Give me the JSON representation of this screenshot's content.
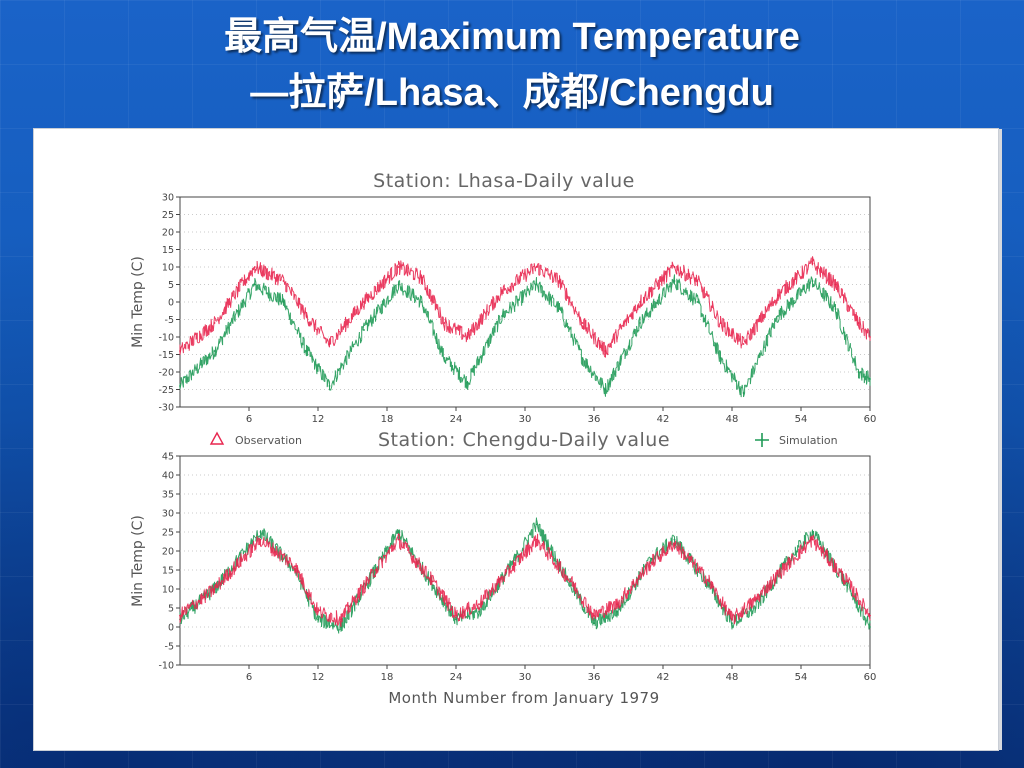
{
  "slide": {
    "title_line1": "最高气温/Maximum Temperature",
    "title_line2": "—拉萨/Lhasa、成都/Chengdu",
    "background_color": "#1557b8"
  },
  "legend": {
    "observation_label": "Observation",
    "observation_symbol": "△",
    "simulation_label": "Simulation",
    "simulation_symbol": "+",
    "observation_color": "#e8264f",
    "simulation_color": "#1f9a57"
  },
  "chart_data": [
    {
      "type": "line",
      "title": "Station: Lhasa-Daily value",
      "xlabel": "",
      "ylabel": "Min Temp (C)",
      "xlim": [
        0,
        60
      ],
      "ylim": [
        -30,
        30
      ],
      "x_ticks": [
        "6",
        "12",
        "18",
        "24",
        "30",
        "36",
        "42",
        "48",
        "54",
        "60"
      ],
      "y_ticks": [
        "30",
        "25",
        "20",
        "15",
        "10",
        "5",
        "0",
        "-5",
        "-10",
        "-15",
        "-20",
        "-25",
        "-30"
      ],
      "grid": "horizontal dotted",
      "x": [
        0,
        3,
        6.5,
        9,
        11,
        13,
        16,
        19,
        21,
        23,
        25,
        28,
        31,
        33,
        35,
        37,
        40,
        43,
        45,
        47,
        49,
        52,
        55,
        57,
        59,
        60
      ],
      "series": [
        {
          "name": "Observation",
          "color": "#e8264f",
          "values": [
            -14,
            -6,
            10,
            6,
            -4,
            -12,
            0,
            10,
            7,
            -6,
            -10,
            3,
            10,
            6,
            -6,
            -14,
            0,
            10,
            6,
            -6,
            -12,
            2,
            11,
            5,
            -6,
            -10
          ]
        },
        {
          "name": "Simulation",
          "color": "#1f9a57",
          "values": [
            -24,
            -14,
            5,
            0,
            -14,
            -24,
            -8,
            5,
            0,
            -16,
            -23,
            -4,
            5,
            -2,
            -16,
            -25,
            -6,
            6,
            0,
            -16,
            -26,
            -4,
            6,
            -2,
            -20,
            -22
          ]
        }
      ]
    },
    {
      "type": "line",
      "title": "Station: Chengdu-Daily value",
      "xlabel": "Month Number from January 1979",
      "ylabel": "Min Temp (C)",
      "xlim": [
        0,
        60
      ],
      "ylim": [
        -10,
        45
      ],
      "x_ticks": [
        "6",
        "12",
        "18",
        "24",
        "30",
        "36",
        "42",
        "48",
        "54",
        "60"
      ],
      "y_ticks": [
        "45",
        "40",
        "35",
        "30",
        "25",
        "20",
        "15",
        "10",
        "5",
        "0",
        "-5",
        "-10"
      ],
      "grid": "horizontal dotted",
      "x": [
        0,
        3,
        7,
        10,
        12,
        14,
        17,
        19,
        22,
        24,
        26,
        29,
        31,
        34,
        36,
        38,
        41,
        43,
        46,
        48,
        50,
        53,
        55,
        58,
        60
      ],
      "series": [
        {
          "name": "Observation",
          "color": "#e8264f",
          "values": [
            3,
            10,
            23,
            16,
            4,
            2,
            15,
            23,
            12,
            3,
            6,
            16,
            23,
            12,
            3,
            6,
            17,
            22,
            12,
            2,
            7,
            17,
            23,
            12,
            3
          ]
        },
        {
          "name": "Simulation",
          "color": "#1f9a57",
          "values": [
            2,
            10,
            25,
            15,
            2,
            0,
            15,
            25,
            11,
            2,
            4,
            17,
            27,
            11,
            1,
            4,
            18,
            23,
            11,
            1,
            5,
            18,
            25,
            11,
            0
          ]
        }
      ]
    }
  ]
}
